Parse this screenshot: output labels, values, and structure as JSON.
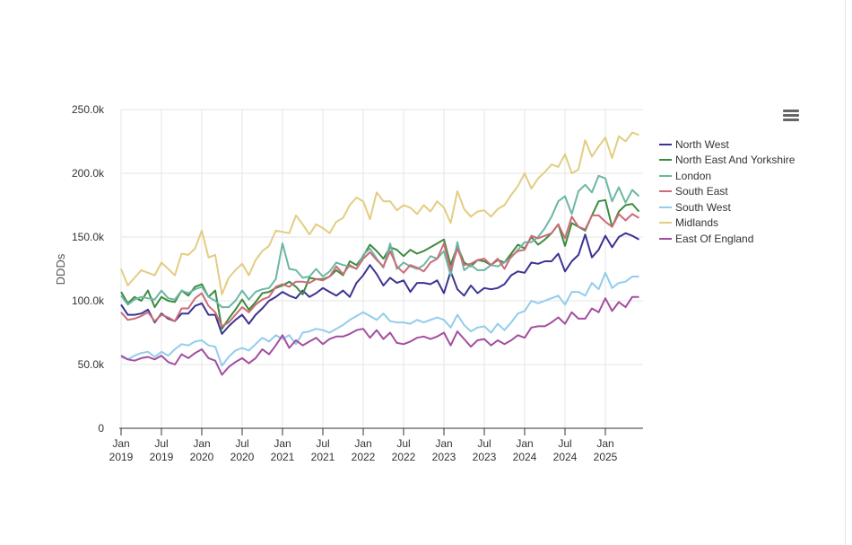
{
  "chart_data": {
    "type": "line",
    "ylabel": "DDDs",
    "xlabel": "",
    "ylim": [
      0,
      250000
    ],
    "y_ticks": [
      "0",
      "50.0k",
      "100.0k",
      "150.0k",
      "200.0k",
      "250.0k"
    ],
    "y_tick_values": [
      0,
      50000,
      100000,
      150000,
      200000,
      250000
    ],
    "x_ticks": [
      {
        "month": 0,
        "line1": "Jan",
        "line2": "2019"
      },
      {
        "month": 6,
        "line1": "Jul",
        "line2": "2019"
      },
      {
        "month": 12,
        "line1": "Jan",
        "line2": "2020"
      },
      {
        "month": 18,
        "line1": "Jul",
        "line2": "2020"
      },
      {
        "month": 24,
        "line1": "Jan",
        "line2": "2021"
      },
      {
        "month": 30,
        "line1": "Jul",
        "line2": "2021"
      },
      {
        "month": 36,
        "line1": "Jan",
        "line2": "2022"
      },
      {
        "month": 42,
        "line1": "Jul",
        "line2": "2022"
      },
      {
        "month": 48,
        "line1": "Jan",
        "line2": "2023"
      },
      {
        "month": 54,
        "line1": "Jul",
        "line2": "2023"
      },
      {
        "month": 60,
        "line1": "Jan",
        "line2": "2024"
      },
      {
        "month": 66,
        "line1": "Jul",
        "line2": "2024"
      },
      {
        "month": 72,
        "line1": "Jan",
        "line2": "2025"
      }
    ],
    "x_start": "Jan 2019",
    "x_unit": "month",
    "grid": true,
    "legend_position": "right",
    "series": [
      {
        "name": "North West",
        "color": "#3b3491",
        "values": [
          97,
          89,
          89,
          90,
          93,
          83,
          90,
          86,
          84,
          90,
          90,
          96,
          98,
          89,
          89,
          74,
          80,
          85,
          89,
          82,
          89,
          94,
          100,
          103,
          107,
          104,
          102,
          108,
          103,
          106,
          110,
          107,
          104,
          108,
          103,
          114,
          120,
          128,
          121,
          112,
          118,
          114,
          116,
          107,
          114,
          114,
          113,
          116,
          106,
          123,
          109,
          104,
          112,
          106,
          110,
          109,
          110,
          113,
          120,
          123,
          122,
          130,
          129,
          131,
          131,
          137,
          123,
          131,
          136,
          152,
          134,
          140,
          151,
          142,
          150,
          153,
          151,
          148
        ]
      },
      {
        "name": "North East And Yorkshire",
        "color": "#3e8a3e",
        "values": [
          107,
          98,
          103,
          100,
          108,
          95,
          103,
          100,
          99,
          108,
          104,
          111,
          113,
          103,
          108,
          78,
          86,
          93,
          101,
          93,
          99,
          106,
          107,
          110,
          112,
          115,
          111,
          105,
          118,
          117,
          117,
          119,
          124,
          120,
          131,
          128,
          135,
          144,
          139,
          133,
          142,
          140,
          135,
          140,
          137,
          139,
          142,
          145,
          148,
          128,
          143,
          130,
          127,
          132,
          131,
          128,
          132,
          130,
          137,
          144,
          141,
          150,
          144,
          148,
          153,
          160,
          143,
          161,
          158,
          155,
          167,
          178,
          179,
          158,
          170,
          175,
          176,
          170
        ]
      },
      {
        "name": "London",
        "color": "#6bb7a5",
        "values": [
          104,
          97,
          101,
          103,
          102,
          101,
          108,
          102,
          101,
          108,
          106,
          109,
          111,
          103,
          100,
          95,
          95,
          100,
          108,
          101,
          107,
          109,
          110,
          117,
          145,
          125,
          124,
          118,
          119,
          125,
          119,
          123,
          130,
          128,
          127,
          125,
          136,
          141,
          133,
          126,
          145,
          125,
          130,
          127,
          125,
          128,
          135,
          133,
          139,
          120,
          146,
          124,
          128,
          124,
          124,
          128,
          127,
          130,
          134,
          140,
          146,
          146,
          150,
          157,
          166,
          178,
          182,
          168,
          186,
          191,
          185,
          198,
          196,
          178,
          189,
          177,
          187,
          182
        ]
      },
      {
        "name": "South East",
        "color": "#cd6b78",
        "values": [
          91,
          85,
          86,
          88,
          91,
          84,
          89,
          87,
          84,
          94,
          94,
          102,
          106,
          96,
          91,
          80,
          83,
          89,
          95,
          91,
          97,
          101,
          103,
          111,
          113,
          111,
          115,
          115,
          114,
          117,
          116,
          119,
          127,
          121,
          128,
          125,
          133,
          138,
          132,
          127,
          139,
          127,
          122,
          128,
          126,
          123,
          130,
          133,
          145,
          124,
          141,
          128,
          129,
          132,
          133,
          128,
          133,
          125,
          135,
          139,
          140,
          151,
          149,
          151,
          153,
          160,
          149,
          166,
          158,
          156,
          167,
          167,
          162,
          158,
          168,
          163,
          168,
          165
        ]
      },
      {
        "name": "South West",
        "color": "#93ccec",
        "values": [
          56,
          54,
          57,
          59,
          60,
          56,
          60,
          57,
          62,
          66,
          65,
          68,
          69,
          65,
          64,
          49,
          56,
          61,
          63,
          61,
          66,
          71,
          68,
          73,
          70,
          73,
          66,
          75,
          76,
          78,
          77,
          75,
          78,
          81,
          85,
          88,
          91,
          88,
          85,
          90,
          84,
          83,
          83,
          82,
          85,
          83,
          85,
          87,
          85,
          79,
          89,
          81,
          76,
          79,
          80,
          75,
          82,
          77,
          83,
          90,
          92,
          100,
          98,
          100,
          102,
          104,
          97,
          107,
          107,
          104,
          114,
          109,
          122,
          110,
          114,
          115,
          119,
          119
        ]
      },
      {
        "name": "Midlands",
        "color": "#e2cd82",
        "values": [
          125,
          112,
          118,
          124,
          122,
          120,
          130,
          125,
          120,
          137,
          136,
          141,
          155,
          134,
          136,
          105,
          118,
          124,
          129,
          120,
          132,
          139,
          143,
          155,
          154,
          153,
          167,
          160,
          152,
          160,
          157,
          153,
          162,
          165,
          175,
          181,
          178,
          164,
          185,
          178,
          178,
          171,
          175,
          173,
          168,
          175,
          170,
          178,
          173,
          161,
          186,
          172,
          166,
          170,
          171,
          166,
          172,
          175,
          183,
          190,
          200,
          188,
          196,
          201,
          207,
          205,
          215,
          200,
          203,
          226,
          213,
          221,
          228,
          212,
          229,
          225,
          232,
          230
        ]
      },
      {
        "name": "East Of England",
        "color": "#a24ea0",
        "values": [
          57,
          54,
          53,
          55,
          56,
          54,
          57,
          52,
          50,
          58,
          55,
          59,
          62,
          55,
          53,
          42,
          48,
          52,
          55,
          51,
          55,
          62,
          58,
          65,
          73,
          63,
          69,
          65,
          68,
          71,
          66,
          70,
          72,
          72,
          74,
          77,
          78,
          71,
          77,
          70,
          75,
          67,
          66,
          68,
          71,
          72,
          70,
          72,
          75,
          65,
          76,
          70,
          64,
          69,
          70,
          65,
          69,
          66,
          69,
          73,
          71,
          79,
          80,
          80,
          83,
          87,
          82,
          91,
          86,
          86,
          94,
          91,
          102,
          92,
          99,
          95,
          103,
          103
        ]
      }
    ]
  },
  "menu": {
    "icon": "hamburger-menu-icon"
  }
}
